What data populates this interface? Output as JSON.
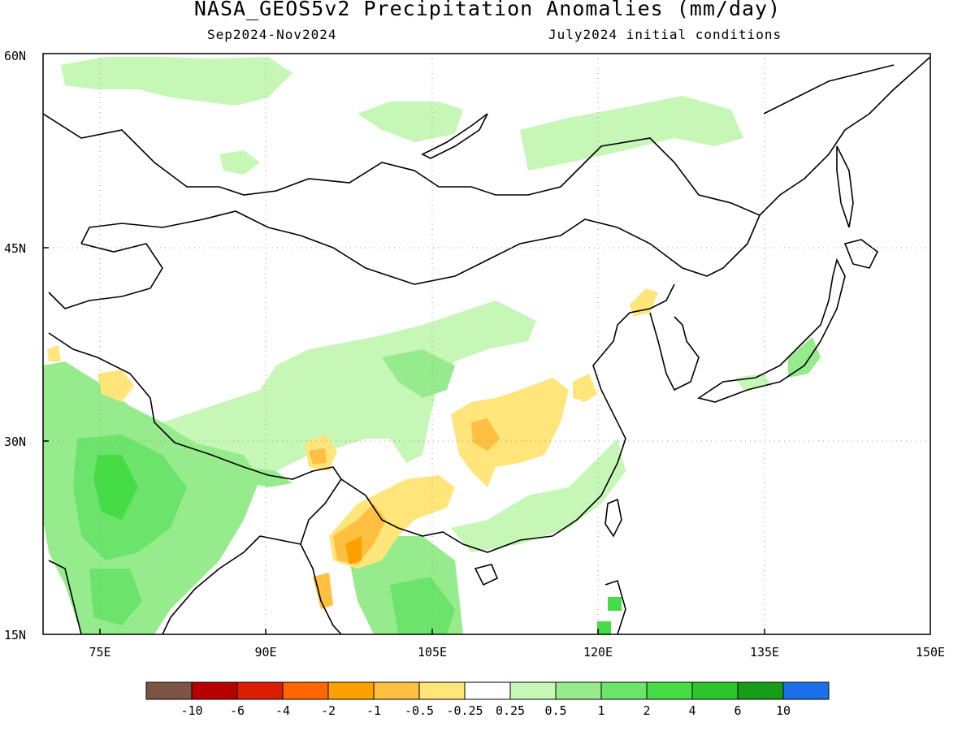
{
  "title": "NASA_GEOS5v2 Precipitation Anomalies (mm/day)",
  "subtitle_left": "Sep2024-Nov2024",
  "subtitle_right": "July2024 initial conditions",
  "map": {
    "lon_range": [
      70,
      150
    ],
    "lat_range": [
      15,
      60
    ],
    "x_ticks": [
      "75E",
      "90E",
      "105E",
      "120E",
      "135E",
      "150E"
    ],
    "y_ticks": [
      "60N",
      "45N",
      "30N",
      "15N"
    ],
    "gridlines": "dotted"
  },
  "colorbar": {
    "labels": [
      "-10",
      "-6",
      "-4",
      "-2",
      "-1",
      "-0.5",
      "-0.25",
      "0.25",
      "0.5",
      "1",
      "2",
      "4",
      "6",
      "10"
    ],
    "colors": [
      "#7b5445",
      "#b80000",
      "#dd1d00",
      "#ff6600",
      "#ffa000",
      "#ffbf40",
      "#ffe57a",
      "#ffffff",
      "#c6f7b6",
      "#96ec8c",
      "#6ce46c",
      "#45dc45",
      "#2cc52c",
      "#169c16",
      "#1c6fea"
    ]
  },
  "anomaly_colors": {
    "wet_light": "#c6f7b6",
    "wet_mid": "#96ec8c",
    "wet_strong": "#6ce46c",
    "wet_heavy": "#45dc45",
    "dry_light": "#ffe57a",
    "dry_mid": "#ffbf40",
    "dry_strong": "#ffa000"
  }
}
